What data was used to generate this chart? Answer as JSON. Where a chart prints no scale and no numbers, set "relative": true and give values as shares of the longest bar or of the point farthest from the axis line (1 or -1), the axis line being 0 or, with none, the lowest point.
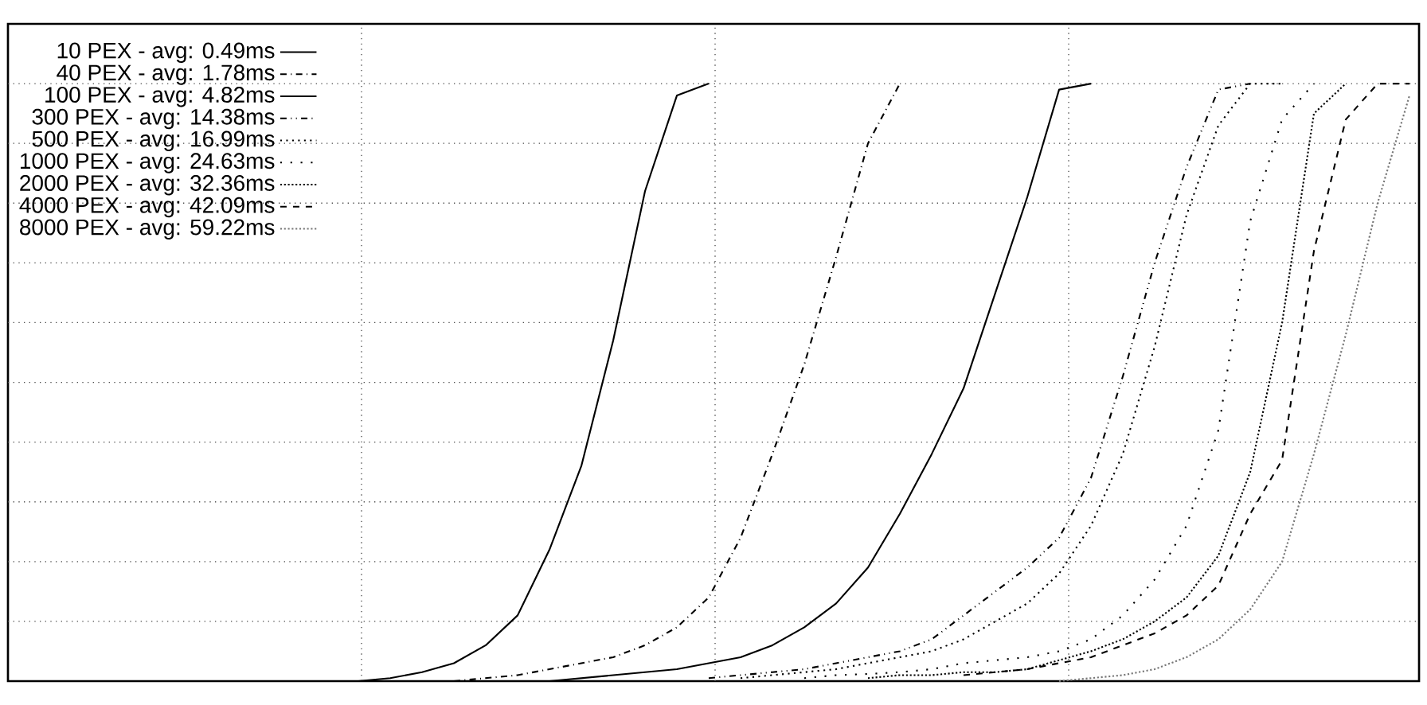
{
  "chart_data": {
    "type": "line",
    "relative": true,
    "grid": true,
    "legend": "top left",
    "marker": "none",
    "categories": [
      null,
      null,
      null,
      null,
      null,
      null,
      null,
      null,
      null,
      null,
      null,
      null,
      null,
      null,
      null,
      null,
      null,
      null,
      null,
      null,
      null,
      null,
      null,
      null,
      null,
      null,
      null,
      null,
      null,
      null,
      null,
      null,
      null,
      null,
      null,
      null,
      null,
      null,
      null,
      null,
      null,
      null,
      null,
      null,
      null
    ],
    "series": [
      {
        "name": "10 PEX - avg: 0.49ms",
        "color": "#000000",
        "line_style": "solid",
        "values": [
          null,
          null,
          null,
          null,
          null,
          null,
          null,
          null,
          null,
          null,
          null,
          0,
          0.005,
          0.015,
          0.03,
          0.06,
          0.11,
          0.22,
          0.36,
          0.57,
          0.82,
          0.98,
          1.0,
          null,
          null,
          null,
          null,
          null,
          null,
          null,
          null,
          null,
          null,
          null,
          null,
          null,
          null,
          null,
          null,
          null,
          null,
          null,
          null,
          null,
          null
        ]
      },
      {
        "name": "40 PEX - avg: 1.78ms",
        "color": "#000000",
        "line_style": "dashdotted",
        "values": [
          null,
          null,
          null,
          null,
          null,
          null,
          null,
          null,
          null,
          null,
          null,
          null,
          null,
          null,
          0,
          0.005,
          0.01,
          0.02,
          0.03,
          0.04,
          0.06,
          0.09,
          0.14,
          0.24,
          0.38,
          0.53,
          0.71,
          0.9,
          1.0,
          null,
          null,
          null,
          null,
          null,
          null,
          null,
          null,
          null,
          null,
          null,
          null,
          null,
          null,
          null,
          null
        ]
      },
      {
        "name": "100 PEX - avg: 4.82ms",
        "color": "#000000",
        "line_style": "solid",
        "values": [
          null,
          null,
          null,
          null,
          null,
          null,
          null,
          null,
          null,
          null,
          null,
          null,
          null,
          null,
          null,
          null,
          null,
          0,
          0.005,
          0.01,
          0.015,
          0.02,
          0.03,
          0.04,
          0.06,
          0.09,
          0.13,
          0.19,
          0.28,
          0.38,
          0.49,
          0.65,
          0.81,
          0.99,
          1.0,
          null,
          null,
          null,
          null,
          null,
          null,
          null,
          null,
          null,
          null
        ]
      },
      {
        "name": "300 PEX - avg: 14.38ms",
        "color": "#000000",
        "line_style": "dashdotdotted",
        "values": [
          null,
          null,
          null,
          null,
          null,
          null,
          null,
          null,
          null,
          null,
          null,
          null,
          null,
          null,
          null,
          null,
          null,
          null,
          null,
          null,
          null,
          null,
          0.005,
          0.01,
          0.015,
          0.02,
          0.03,
          0.04,
          0.05,
          0.07,
          0.11,
          0.15,
          0.19,
          0.24,
          0.34,
          0.51,
          0.7,
          0.86,
          0.99,
          1.0,
          null,
          null,
          null,
          null,
          null
        ]
      },
      {
        "name": "500 PEX - avg: 16.99ms",
        "color": "#000000",
        "line_style": "dotted",
        "values": [
          null,
          null,
          null,
          null,
          null,
          null,
          null,
          null,
          null,
          null,
          null,
          null,
          null,
          null,
          null,
          null,
          null,
          null,
          null,
          null,
          null,
          null,
          null,
          0.005,
          0.01,
          0.015,
          0.02,
          0.03,
          0.04,
          0.05,
          0.07,
          0.1,
          0.13,
          0.18,
          0.26,
          0.38,
          0.56,
          0.78,
          0.93,
          1.0,
          1.0,
          null,
          null,
          null,
          null
        ]
      },
      {
        "name": "1000 PEX - avg: 24.63ms",
        "color": "#000000",
        "line_style": "loosely dotted",
        "values": [
          null,
          null,
          null,
          null,
          null,
          null,
          null,
          null,
          null,
          null,
          null,
          null,
          null,
          null,
          null,
          null,
          null,
          null,
          null,
          null,
          null,
          null,
          null,
          null,
          null,
          0.005,
          0.01,
          0.012,
          0.015,
          0.02,
          0.03,
          0.035,
          0.04,
          0.05,
          0.07,
          0.11,
          0.17,
          0.26,
          0.42,
          0.77,
          0.94,
          1.0,
          null,
          null,
          null
        ]
      },
      {
        "name": "2000 PEX - avg: 32.36ms",
        "color": "#000000",
        "line_style": "densely dotted",
        "values": [
          null,
          null,
          null,
          null,
          null,
          null,
          null,
          null,
          null,
          null,
          null,
          null,
          null,
          null,
          null,
          null,
          null,
          null,
          null,
          null,
          null,
          null,
          null,
          null,
          null,
          null,
          null,
          0.005,
          0.01,
          0.01,
          0.015,
          0.015,
          0.02,
          0.035,
          0.05,
          0.07,
          0.1,
          0.14,
          0.21,
          0.35,
          0.6,
          0.95,
          1.0,
          null,
          null
        ]
      },
      {
        "name": "4000 PEX - avg: 42.09ms",
        "color": "#000000",
        "line_style": "dashed",
        "values": [
          null,
          null,
          null,
          null,
          null,
          null,
          null,
          null,
          null,
          null,
          null,
          null,
          null,
          null,
          null,
          null,
          null,
          null,
          null,
          null,
          null,
          null,
          null,
          null,
          null,
          null,
          null,
          null,
          null,
          null,
          0.01,
          0.015,
          0.02,
          0.03,
          0.04,
          0.06,
          0.08,
          0.11,
          0.16,
          0.28,
          0.37,
          0.72,
          0.94,
          1.0,
          1.0
        ]
      },
      {
        "name": "8000 PEX - avg: 59.22ms",
        "color": "#777777",
        "line_style": "densely dotted",
        "values": [
          null,
          null,
          null,
          null,
          null,
          null,
          null,
          null,
          null,
          null,
          null,
          null,
          null,
          null,
          null,
          null,
          null,
          null,
          null,
          null,
          null,
          null,
          null,
          null,
          null,
          null,
          null,
          null,
          null,
          null,
          null,
          null,
          null,
          0,
          0.005,
          0.01,
          0.02,
          0.04,
          0.07,
          0.12,
          0.2,
          0.38,
          0.58,
          0.8,
          0.98
        ]
      }
    ]
  }
}
